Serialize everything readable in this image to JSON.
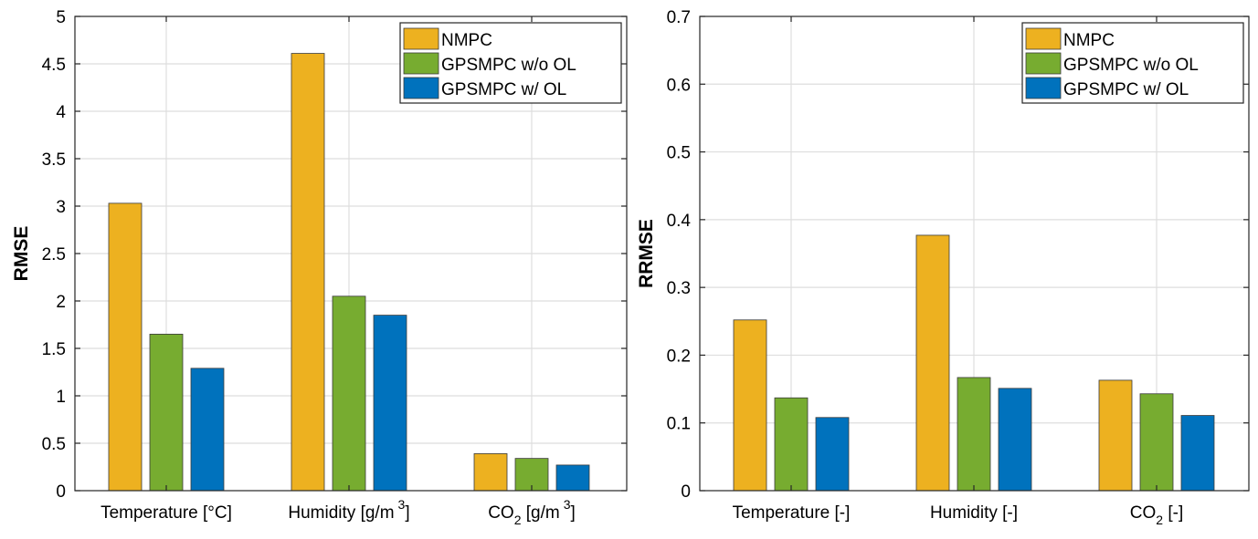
{
  "chart_data": [
    {
      "type": "bar",
      "ylabel": "RMSE",
      "ylim": [
        0,
        5
      ],
      "yticks": [
        0,
        0.5,
        1,
        1.5,
        2,
        2.5,
        3,
        3.5,
        4,
        4.5,
        5
      ],
      "ytick_labels": [
        "0",
        "0.5",
        "1",
        "1.5",
        "2",
        "2.5",
        "3",
        "3.5",
        "4",
        "4.5",
        "5"
      ],
      "grid": true,
      "legend_position": "top-right",
      "categories": [
        {
          "main": "Temperature [°C]"
        },
        {
          "main": "Humidity [g/m",
          "sup": "3",
          "tail": "]"
        },
        {
          "main": "CO",
          "sub": "2",
          "tail": " [g/m",
          "sup": "3",
          "tail2": "]"
        }
      ],
      "series": [
        {
          "name": "NMPC",
          "color": "#EDB120",
          "values": [
            3.03,
            4.61,
            0.39
          ]
        },
        {
          "name": "GPSMPC w/o OL",
          "color": "#77AC30",
          "values": [
            1.65,
            2.05,
            0.34
          ]
        },
        {
          "name": "GPSMPC w/ OL",
          "color": "#0072BD",
          "values": [
            1.29,
            1.85,
            0.27
          ]
        }
      ]
    },
    {
      "type": "bar",
      "ylabel": "RRMSE",
      "ylim": [
        0,
        0.7
      ],
      "yticks": [
        0,
        0.1,
        0.2,
        0.3,
        0.4,
        0.5,
        0.6,
        0.7
      ],
      "ytick_labels": [
        "0",
        "0.1",
        "0.2",
        "0.3",
        "0.4",
        "0.5",
        "0.6",
        "0.7"
      ],
      "grid": true,
      "legend_position": "top-right",
      "categories": [
        {
          "main": "Temperature [-]"
        },
        {
          "main": "Humidity [-]"
        },
        {
          "main": "CO",
          "sub": "2",
          "tail": " [-]"
        }
      ],
      "series": [
        {
          "name": "NMPC",
          "color": "#EDB120",
          "values": [
            0.252,
            0.377,
            0.163
          ]
        },
        {
          "name": "GPSMPC w/o OL",
          "color": "#77AC30",
          "values": [
            0.137,
            0.167,
            0.143
          ]
        },
        {
          "name": "GPSMPC w/ OL",
          "color": "#0072BD",
          "values": [
            0.108,
            0.151,
            0.111
          ]
        }
      ]
    }
  ]
}
